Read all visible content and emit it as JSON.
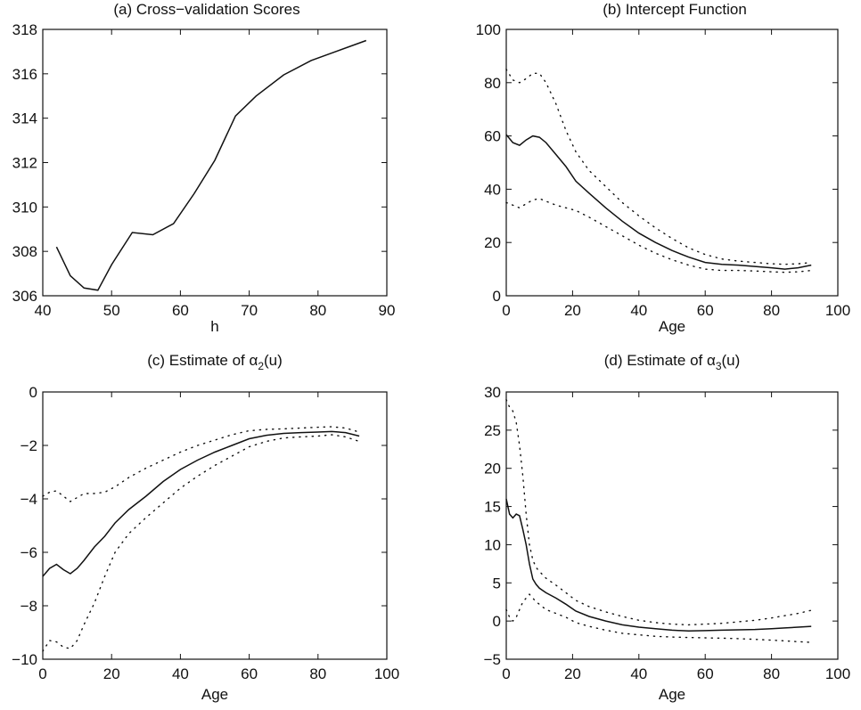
{
  "chart_data": [
    {
      "id": "a",
      "type": "line",
      "title": "(a) Cross−validation Scores",
      "xlabel": "h",
      "ylabel": "",
      "xlim": [
        40,
        90
      ],
      "ylim": [
        306,
        318
      ],
      "xticks": [
        40,
        50,
        60,
        70,
        80,
        90
      ],
      "yticks": [
        306,
        308,
        310,
        312,
        314,
        316,
        318
      ],
      "series": [
        {
          "style": "solid",
          "x": [
            42,
            44,
            46,
            48,
            50,
            53,
            56,
            59,
            62,
            65,
            68,
            71,
            75,
            79,
            83,
            87
          ],
          "y": [
            308.2,
            306.9,
            306.35,
            306.25,
            307.4,
            308.85,
            308.75,
            309.25,
            310.6,
            312.1,
            314.1,
            315.0,
            315.95,
            316.6,
            317.05,
            317.5
          ]
        }
      ]
    },
    {
      "id": "b",
      "type": "line",
      "title": "(b) Intercept Function",
      "xlabel": "Age",
      "ylabel": "",
      "xlim": [
        0,
        100
      ],
      "ylim": [
        0,
        100
      ],
      "xticks": [
        0,
        20,
        40,
        60,
        80,
        100
      ],
      "yticks": [
        0,
        20,
        40,
        60,
        80,
        100
      ],
      "series": [
        {
          "style": "solid",
          "x": [
            0,
            2,
            4,
            6,
            8,
            10,
            12,
            15,
            18,
            21,
            25,
            30,
            35,
            40,
            45,
            50,
            55,
            60,
            65,
            70,
            75,
            80,
            84,
            88,
            92
          ],
          "y": [
            60.5,
            57.5,
            56.5,
            58.5,
            60,
            59.5,
            57.5,
            53,
            48.5,
            43,
            38.5,
            33,
            28,
            23.5,
            20,
            17,
            14.5,
            12.5,
            11.8,
            11.5,
            11,
            10.5,
            10,
            10.5,
            11.5
          ]
        },
        {
          "style": "dotted",
          "x": [
            0,
            2,
            4,
            6,
            8,
            10,
            12,
            15,
            18,
            21,
            25,
            30,
            35,
            40,
            45,
            50,
            55,
            60,
            65,
            70,
            75,
            80,
            84,
            88,
            92
          ],
          "y": [
            85,
            81,
            80,
            81.5,
            83.5,
            83.5,
            80,
            72,
            62,
            54,
            47,
            41,
            35,
            30,
            25.5,
            21.5,
            18,
            15.5,
            13.8,
            13,
            12.5,
            12,
            11.8,
            12,
            12.5
          ]
        },
        {
          "style": "dotted",
          "x": [
            0,
            2,
            4,
            6,
            8,
            10,
            12,
            15,
            18,
            21,
            25,
            30,
            35,
            40,
            45,
            50,
            55,
            60,
            65,
            70,
            75,
            80,
            84,
            88,
            92
          ],
          "y": [
            35,
            34,
            33,
            34.5,
            36,
            36.5,
            35.5,
            34,
            33,
            32,
            29.5,
            26,
            22.5,
            19,
            16,
            13.5,
            11.5,
            10,
            9.5,
            9.5,
            9.3,
            9,
            8.8,
            9,
            9.5
          ]
        }
      ]
    },
    {
      "id": "c",
      "type": "line",
      "title": "(c) Estimate of α",
      "title_sub": "2",
      "title_suffix": "(u)",
      "xlabel": "Age",
      "ylabel": "",
      "xlim": [
        0,
        100
      ],
      "ylim": [
        -10,
        0
      ],
      "xticks": [
        0,
        20,
        40,
        60,
        80,
        100
      ],
      "yticks": [
        -10,
        -8,
        -6,
        -4,
        -2,
        0
      ],
      "series": [
        {
          "style": "solid",
          "x": [
            0,
            2,
            4,
            6,
            8,
            10,
            12,
            15,
            18,
            21,
            25,
            30,
            35,
            40,
            45,
            50,
            55,
            60,
            65,
            70,
            75,
            80,
            84,
            88,
            92
          ],
          "y": [
            -6.9,
            -6.6,
            -6.45,
            -6.65,
            -6.8,
            -6.6,
            -6.3,
            -5.8,
            -5.4,
            -4.9,
            -4.4,
            -3.9,
            -3.35,
            -2.9,
            -2.55,
            -2.25,
            -2.0,
            -1.75,
            -1.62,
            -1.55,
            -1.52,
            -1.5,
            -1.48,
            -1.52,
            -1.65
          ]
        },
        {
          "style": "dotted",
          "x": [
            0,
            2,
            4,
            6,
            8,
            10,
            12,
            15,
            18,
            21,
            25,
            30,
            35,
            40,
            45,
            50,
            55,
            60,
            65,
            70,
            75,
            80,
            84,
            88,
            92
          ],
          "y": [
            -3.9,
            -3.75,
            -3.7,
            -3.9,
            -4.1,
            -3.95,
            -3.8,
            -3.8,
            -3.75,
            -3.55,
            -3.2,
            -2.85,
            -2.55,
            -2.25,
            -2.0,
            -1.8,
            -1.6,
            -1.45,
            -1.4,
            -1.38,
            -1.35,
            -1.32,
            -1.3,
            -1.35,
            -1.5
          ]
        },
        {
          "style": "dotted",
          "x": [
            0,
            2,
            4,
            6,
            8,
            10,
            12,
            15,
            18,
            21,
            25,
            30,
            35,
            40,
            45,
            50,
            55,
            60,
            65,
            70,
            75,
            80,
            84,
            88,
            92
          ],
          "y": [
            -9.7,
            -9.3,
            -9.35,
            -9.55,
            -9.6,
            -9.3,
            -8.7,
            -7.9,
            -6.9,
            -6.0,
            -5.3,
            -4.7,
            -4.15,
            -3.6,
            -3.15,
            -2.75,
            -2.4,
            -2.05,
            -1.85,
            -1.72,
            -1.68,
            -1.65,
            -1.6,
            -1.68,
            -1.85
          ]
        }
      ]
    },
    {
      "id": "d",
      "type": "line",
      "title": "(d) Estimate of α",
      "title_sub": "3",
      "title_suffix": "(u)",
      "xlabel": "Age",
      "ylabel": "",
      "xlim": [
        0,
        100
      ],
      "ylim": [
        -5,
        30
      ],
      "xticks": [
        0,
        20,
        40,
        60,
        80,
        100
      ],
      "yticks": [
        -5,
        0,
        5,
        10,
        15,
        20,
        25,
        30
      ],
      "series": [
        {
          "style": "solid",
          "x": [
            0,
            1,
            2,
            3,
            4,
            5,
            6,
            7,
            8,
            9,
            10,
            12,
            15,
            18,
            21,
            25,
            30,
            35,
            40,
            45,
            50,
            55,
            60,
            65,
            70,
            75,
            80,
            84,
            88,
            92
          ],
          "y": [
            16,
            14,
            13.5,
            14,
            13.8,
            12,
            10,
            7.5,
            5.5,
            4.8,
            4.3,
            3.7,
            3,
            2.2,
            1.3,
            0.6,
            0,
            -0.5,
            -0.8,
            -1,
            -1.2,
            -1.3,
            -1.25,
            -1.2,
            -1.15,
            -1.1,
            -1.0,
            -0.9,
            -0.8,
            -0.7
          ]
        },
        {
          "style": "dotted",
          "x": [
            0,
            1,
            2,
            3,
            4,
            5,
            6,
            7,
            8,
            9,
            10,
            12,
            15,
            18,
            21,
            25,
            30,
            35,
            40,
            45,
            50,
            55,
            60,
            65,
            70,
            75,
            80,
            84,
            88,
            92
          ],
          "y": [
            29,
            28,
            27.5,
            26,
            23,
            19,
            14,
            10,
            8,
            7,
            6.5,
            5.6,
            4.7,
            3.7,
            2.7,
            1.9,
            1.2,
            0.6,
            0.1,
            -0.2,
            -0.4,
            -0.5,
            -0.4,
            -0.3,
            -0.1,
            0.1,
            0.4,
            0.7,
            1.0,
            1.4
          ]
        },
        {
          "style": "dotted",
          "x": [
            0,
            1,
            2,
            3,
            4,
            5,
            6,
            7,
            8,
            9,
            10,
            12,
            15,
            18,
            21,
            25,
            30,
            35,
            40,
            45,
            50,
            55,
            60,
            65,
            70,
            75,
            80,
            84,
            88,
            92
          ],
          "y": [
            1.5,
            0.5,
            0,
            0.5,
            1.5,
            2.5,
            3,
            3.5,
            3,
            2.5,
            2.2,
            1.5,
            1,
            0.5,
            -0.2,
            -0.7,
            -1.2,
            -1.6,
            -1.8,
            -2,
            -2.1,
            -2.15,
            -2.2,
            -2.25,
            -2.3,
            -2.4,
            -2.5,
            -2.6,
            -2.7,
            -2.8
          ]
        }
      ]
    }
  ]
}
